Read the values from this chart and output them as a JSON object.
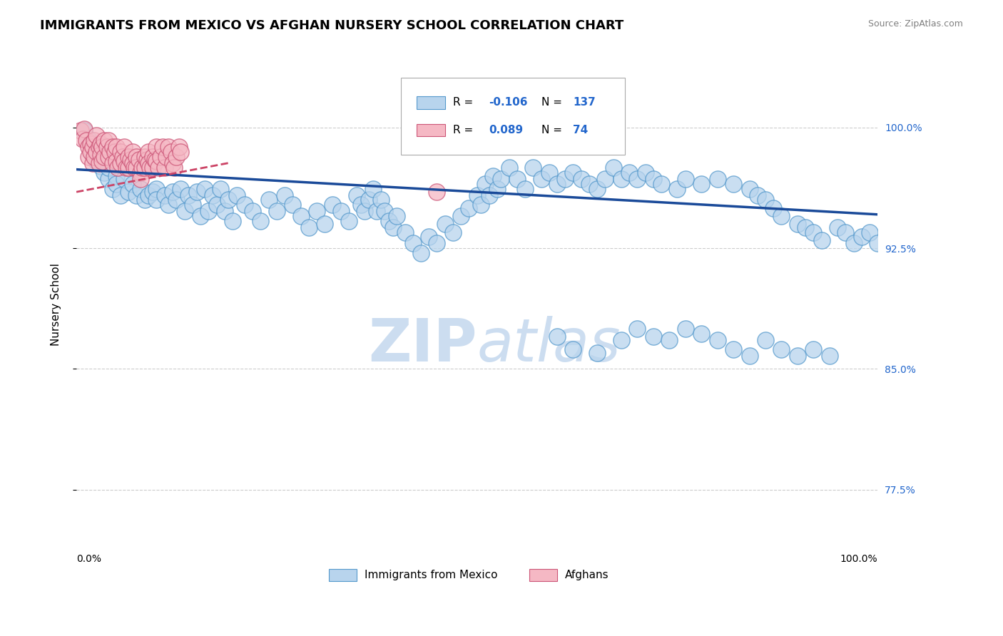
{
  "title": "IMMIGRANTS FROM MEXICO VS AFGHAN NURSERY SCHOOL CORRELATION CHART",
  "source": "Source: ZipAtlas.com",
  "ylabel": "Nursery School",
  "ytick_labels": [
    "77.5%",
    "85.0%",
    "92.5%",
    "100.0%"
  ],
  "ytick_values": [
    0.775,
    0.85,
    0.925,
    1.0
  ],
  "xlim": [
    0.0,
    1.0
  ],
  "ylim": [
    0.735,
    1.045
  ],
  "legend_blue_R": "-0.106",
  "legend_blue_N": "137",
  "legend_pink_R": "0.089",
  "legend_pink_N": "74",
  "blue_color": "#b8d4ed",
  "blue_edge_color": "#5599cc",
  "blue_line_color": "#1a4a99",
  "pink_color": "#f5b8c4",
  "pink_edge_color": "#cc5577",
  "pink_line_color": "#cc4466",
  "blue_trend_start_x": 0.0,
  "blue_trend_start_y": 0.974,
  "blue_trend_end_x": 1.0,
  "blue_trend_end_y": 0.946,
  "pink_trend_start_x": 0.0,
  "pink_trend_start_y": 0.96,
  "pink_trend_end_x": 0.19,
  "pink_trend_end_y": 0.978,
  "background_color": "#ffffff",
  "grid_color": "#cccccc",
  "watermark_color": "#ccddf0",
  "title_fontsize": 13,
  "axis_label_fontsize": 11,
  "tick_fontsize": 10,
  "blue_scatter_x": [
    0.01,
    0.015,
    0.02,
    0.02,
    0.025,
    0.025,
    0.03,
    0.03,
    0.035,
    0.04,
    0.04,
    0.045,
    0.05,
    0.05,
    0.055,
    0.06,
    0.065,
    0.07,
    0.075,
    0.08,
    0.085,
    0.09,
    0.095,
    0.1,
    0.1,
    0.11,
    0.115,
    0.12,
    0.125,
    0.13,
    0.135,
    0.14,
    0.145,
    0.15,
    0.155,
    0.16,
    0.165,
    0.17,
    0.175,
    0.18,
    0.185,
    0.19,
    0.195,
    0.2,
    0.21,
    0.22,
    0.23,
    0.24,
    0.25,
    0.26,
    0.27,
    0.28,
    0.29,
    0.3,
    0.31,
    0.32,
    0.33,
    0.34,
    0.35,
    0.355,
    0.36,
    0.365,
    0.37,
    0.375,
    0.38,
    0.385,
    0.39,
    0.395,
    0.4,
    0.41,
    0.42,
    0.43,
    0.44,
    0.45,
    0.46,
    0.47,
    0.48,
    0.49,
    0.5,
    0.505,
    0.51,
    0.515,
    0.52,
    0.525,
    0.53,
    0.54,
    0.55,
    0.56,
    0.57,
    0.58,
    0.59,
    0.6,
    0.61,
    0.62,
    0.63,
    0.64,
    0.65,
    0.66,
    0.67,
    0.68,
    0.69,
    0.7,
    0.71,
    0.72,
    0.73,
    0.75,
    0.76,
    0.78,
    0.8,
    0.82,
    0.84,
    0.85,
    0.86,
    0.87,
    0.88,
    0.9,
    0.91,
    0.92,
    0.93,
    0.95,
    0.96,
    0.97,
    0.98,
    0.99,
    1.0,
    0.6,
    0.62,
    0.65,
    0.68,
    0.7,
    0.72,
    0.74,
    0.76,
    0.78,
    0.8,
    0.82,
    0.84,
    0.86,
    0.88,
    0.9,
    0.92,
    0.94
  ],
  "blue_scatter_y": [
    0.998,
    0.993,
    0.99,
    0.983,
    0.988,
    0.979,
    0.985,
    0.976,
    0.972,
    0.968,
    0.975,
    0.962,
    0.97,
    0.965,
    0.958,
    0.968,
    0.96,
    0.965,
    0.958,
    0.962,
    0.955,
    0.958,
    0.96,
    0.962,
    0.955,
    0.958,
    0.952,
    0.96,
    0.955,
    0.962,
    0.948,
    0.958,
    0.952,
    0.96,
    0.945,
    0.962,
    0.948,
    0.958,
    0.952,
    0.962,
    0.948,
    0.955,
    0.942,
    0.958,
    0.952,
    0.948,
    0.942,
    0.955,
    0.948,
    0.958,
    0.952,
    0.945,
    0.938,
    0.948,
    0.94,
    0.952,
    0.948,
    0.942,
    0.958,
    0.952,
    0.948,
    0.955,
    0.962,
    0.948,
    0.955,
    0.948,
    0.942,
    0.938,
    0.945,
    0.935,
    0.928,
    0.922,
    0.932,
    0.928,
    0.94,
    0.935,
    0.945,
    0.95,
    0.958,
    0.952,
    0.965,
    0.958,
    0.97,
    0.962,
    0.968,
    0.975,
    0.968,
    0.962,
    0.975,
    0.968,
    0.972,
    0.965,
    0.968,
    0.972,
    0.968,
    0.965,
    0.962,
    0.968,
    0.975,
    0.968,
    0.972,
    0.968,
    0.972,
    0.968,
    0.965,
    0.962,
    0.968,
    0.965,
    0.968,
    0.965,
    0.962,
    0.958,
    0.955,
    0.95,
    0.945,
    0.94,
    0.938,
    0.935,
    0.93,
    0.938,
    0.935,
    0.928,
    0.932,
    0.935,
    0.928,
    0.87,
    0.862,
    0.86,
    0.868,
    0.875,
    0.87,
    0.868,
    0.875,
    0.872,
    0.868,
    0.862,
    0.858,
    0.868,
    0.862,
    0.858,
    0.862,
    0.858
  ],
  "pink_scatter_x": [
    0.005,
    0.008,
    0.01,
    0.012,
    0.015,
    0.015,
    0.018,
    0.018,
    0.02,
    0.02,
    0.022,
    0.022,
    0.025,
    0.025,
    0.028,
    0.028,
    0.03,
    0.03,
    0.032,
    0.032,
    0.035,
    0.035,
    0.038,
    0.04,
    0.04,
    0.042,
    0.045,
    0.045,
    0.048,
    0.05,
    0.05,
    0.052,
    0.055,
    0.055,
    0.058,
    0.06,
    0.06,
    0.062,
    0.065,
    0.065,
    0.068,
    0.07,
    0.07,
    0.072,
    0.075,
    0.075,
    0.078,
    0.08,
    0.08,
    0.082,
    0.085,
    0.085,
    0.088,
    0.09,
    0.09,
    0.092,
    0.095,
    0.095,
    0.098,
    0.1,
    0.1,
    0.102,
    0.105,
    0.108,
    0.11,
    0.112,
    0.115,
    0.118,
    0.12,
    0.122,
    0.125,
    0.128,
    0.13,
    0.45
  ],
  "pink_scatter_y": [
    0.998,
    0.993,
    0.999,
    0.992,
    0.988,
    0.982,
    0.99,
    0.985,
    0.988,
    0.978,
    0.992,
    0.982,
    0.995,
    0.985,
    0.988,
    0.978,
    0.99,
    0.983,
    0.988,
    0.979,
    0.992,
    0.982,
    0.988,
    0.992,
    0.982,
    0.985,
    0.988,
    0.978,
    0.985,
    0.988,
    0.979,
    0.975,
    0.985,
    0.978,
    0.982,
    0.988,
    0.979,
    0.975,
    0.982,
    0.975,
    0.98,
    0.985,
    0.978,
    0.975,
    0.982,
    0.975,
    0.98,
    0.972,
    0.968,
    0.975,
    0.982,
    0.975,
    0.98,
    0.985,
    0.978,
    0.975,
    0.982,
    0.975,
    0.98,
    0.988,
    0.979,
    0.975,
    0.982,
    0.988,
    0.975,
    0.982,
    0.988,
    0.985,
    0.978,
    0.975,
    0.982,
    0.988,
    0.985,
    0.96
  ]
}
